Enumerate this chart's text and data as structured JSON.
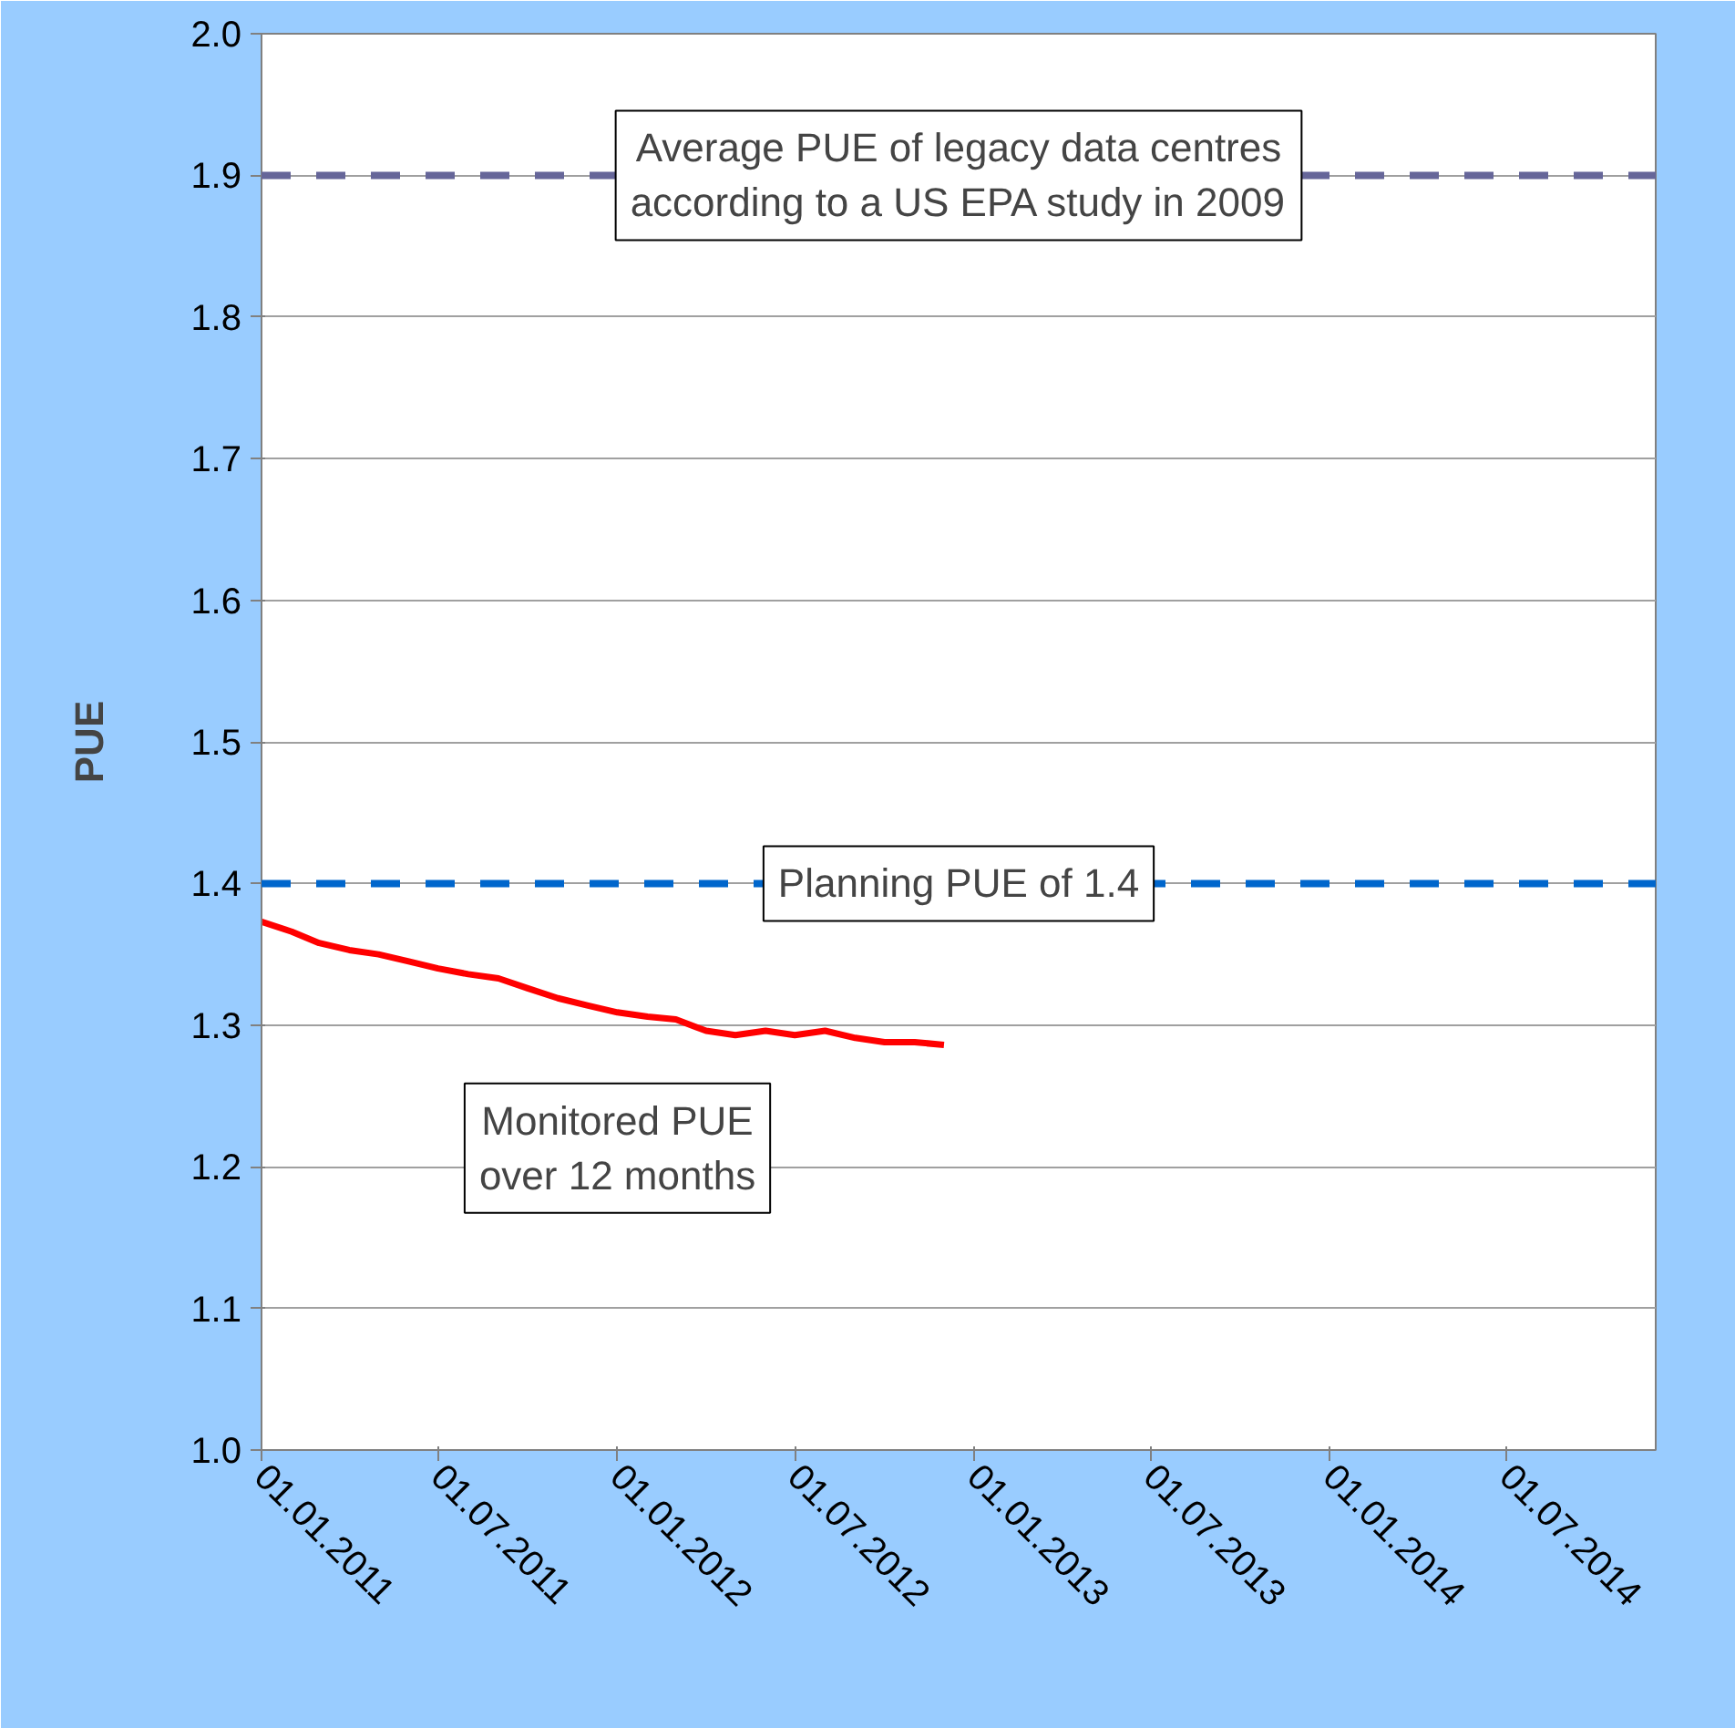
{
  "chart_data": {
    "type": "line",
    "ylabel": "PUE",
    "x": [
      "2011-01-01",
      "2011-02-01",
      "2011-03-01",
      "2011-04-01",
      "2011-05-01",
      "2011-06-01",
      "2011-07-01",
      "2011-08-01",
      "2011-09-01",
      "2011-10-01",
      "2011-11-01",
      "2011-12-01",
      "2012-01-01",
      "2012-02-01",
      "2012-03-01",
      "2012-04-01",
      "2012-05-01",
      "2012-06-01",
      "2012-07-01",
      "2012-08-01",
      "2012-09-01",
      "2012-10-01",
      "2012-11-01",
      "2012-12-01"
    ],
    "series": [
      {
        "name": "Monitored PUE\nover 12 months",
        "color": "#ff0000",
        "values": [
          1.373,
          1.366,
          1.358,
          1.353,
          1.35,
          1.345,
          1.34,
          1.336,
          1.333,
          1.326,
          1.319,
          1.314,
          1.309,
          1.306,
          1.304,
          1.296,
          1.293,
          1.296,
          1.293,
          1.296,
          1.291,
          1.288,
          1.288,
          1.286
        ]
      }
    ],
    "xlim": [
      "2011-01-01",
      "2014-12-01"
    ],
    "xticks": [
      {
        "value": "2011-01-01",
        "label": "01.01.2011"
      },
      {
        "value": "2011-07-01",
        "label": "01.07.2011"
      },
      {
        "value": "2012-01-01",
        "label": "01.01.2012"
      },
      {
        "value": "2012-07-01",
        "label": "01.07.2012"
      },
      {
        "value": "2013-01-01",
        "label": "01.01.2013"
      },
      {
        "value": "2013-07-01",
        "label": "01.07.2013"
      },
      {
        "value": "2014-01-01",
        "label": "01.01.2014"
      },
      {
        "value": "2014-07-01",
        "label": "01.07.2014"
      }
    ],
    "ylim": [
      1.0,
      2.0
    ],
    "yticks": [
      {
        "value": 1.0,
        "label": "1.0"
      },
      {
        "value": 1.1,
        "label": "1.1"
      },
      {
        "value": 1.2,
        "label": "1.2"
      },
      {
        "value": 1.3,
        "label": "1.3"
      },
      {
        "value": 1.4,
        "label": "1.4"
      },
      {
        "value": 1.5,
        "label": "1.5"
      },
      {
        "value": 1.6,
        "label": "1.6"
      },
      {
        "value": 1.7,
        "label": "1.7"
      },
      {
        "value": 1.8,
        "label": "1.8"
      },
      {
        "value": 1.9,
        "label": "1.9"
      },
      {
        "value": 2.0,
        "label": "2.0"
      }
    ],
    "ref_lines": [
      {
        "axis": "y",
        "value": 1.9,
        "label": "Average PUE of legacy data centres\naccording to a US EPA study in 2009",
        "color": "#666699",
        "line_style": "dashed"
      },
      {
        "axis": "y",
        "value": 1.4,
        "label": "Planning PUE of 1.4",
        "color": "#0066cc",
        "line_style": "dashed"
      }
    ],
    "grid": "y",
    "marker": "none",
    "line_style": "solid"
  }
}
